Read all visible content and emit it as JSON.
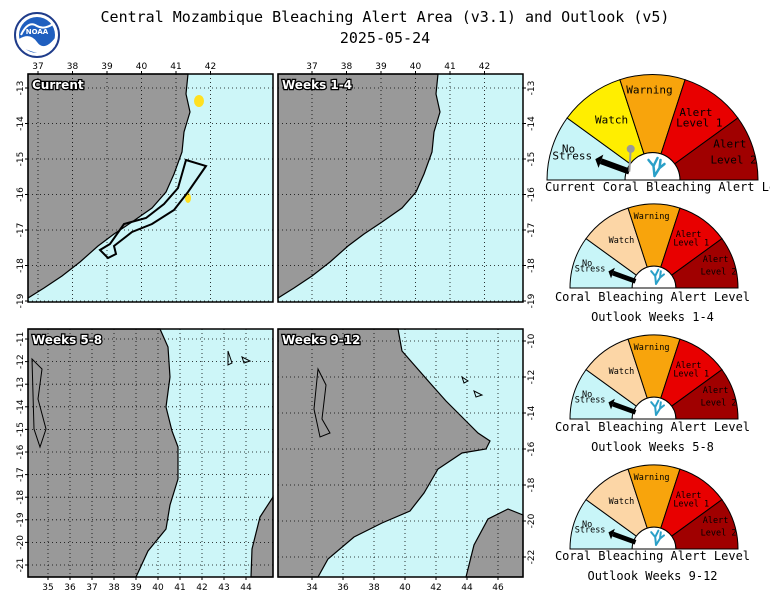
{
  "header": {
    "title_line1": "Central Mozambique Bleaching Alert Area (v3.1) and Outlook (v5)",
    "title_line2": "2025-05-24"
  },
  "colors": {
    "ocean": "#cdf6f8",
    "land": "#999999",
    "no_stress": "#c8f5f8",
    "watch_current": "#ffee00",
    "watch_outlook": "#fcd6a6",
    "warning": "#f8a40c",
    "alert1": "#e80000",
    "alert2": "#a00000",
    "hotspot": "#ffe020"
  },
  "maps": [
    {
      "label": "Current",
      "lon_ticks": [
        "37",
        "38",
        "39",
        "40",
        "41",
        "42"
      ],
      "lat_ticks": [
        "-13",
        "-14",
        "-15",
        "-16",
        "-17",
        "-18",
        "-19"
      ],
      "lat_axis_side": "left"
    },
    {
      "label": "Weeks 1-4",
      "lon_ticks": [
        "37",
        "38",
        "39",
        "40",
        "41",
        "42"
      ],
      "lat_ticks": [
        "-13",
        "-14",
        "-15",
        "-16",
        "-17",
        "-18",
        "-19"
      ],
      "lat_axis_side": "right"
    },
    {
      "label": "Weeks 5-8",
      "lon_ticks": [
        "35",
        "36",
        "37",
        "38",
        "39",
        "40",
        "41",
        "42",
        "43",
        "44"
      ],
      "lat_ticks": [
        "-11",
        "-12",
        "-13",
        "-14",
        "-15",
        "-16",
        "-17",
        "-18",
        "-19",
        "-20",
        "-21"
      ],
      "lat_axis_side": "left"
    },
    {
      "label": "Weeks 9-12",
      "lon_ticks": [
        "34",
        "36",
        "38",
        "40",
        "42",
        "44",
        "46"
      ],
      "lat_ticks": [
        "-10",
        "-12",
        "-14",
        "-16",
        "-18",
        "-20",
        "-22"
      ],
      "lat_axis_side": "right"
    }
  ],
  "gauge_text": {
    "no_stress_1": "No",
    "no_stress_2": "Stress",
    "watch": "Watch",
    "warning": "Warning",
    "alert1_1": "Alert",
    "alert1_2": "Level 1",
    "alert2_1": "Alert",
    "alert2_2": "Level 2"
  },
  "gauges": [
    {
      "caption_line1": "Current Coral Bleaching Alert Level",
      "caption_line2": "",
      "variant": "current",
      "level": "No Stress"
    },
    {
      "caption_line1": "Coral Bleaching Alert Level",
      "caption_line2": "Outlook Weeks 1-4",
      "variant": "outlook",
      "level": "No Stress"
    },
    {
      "caption_line1": "Coral Bleaching Alert Level",
      "caption_line2": "Outlook Weeks 5-8",
      "variant": "outlook",
      "level": "No Stress"
    },
    {
      "caption_line1": "Coral Bleaching Alert Level",
      "caption_line2": "Outlook Weeks 9-12",
      "variant": "outlook",
      "level": "No Stress"
    }
  ],
  "logo": {
    "text": "NOAA"
  }
}
